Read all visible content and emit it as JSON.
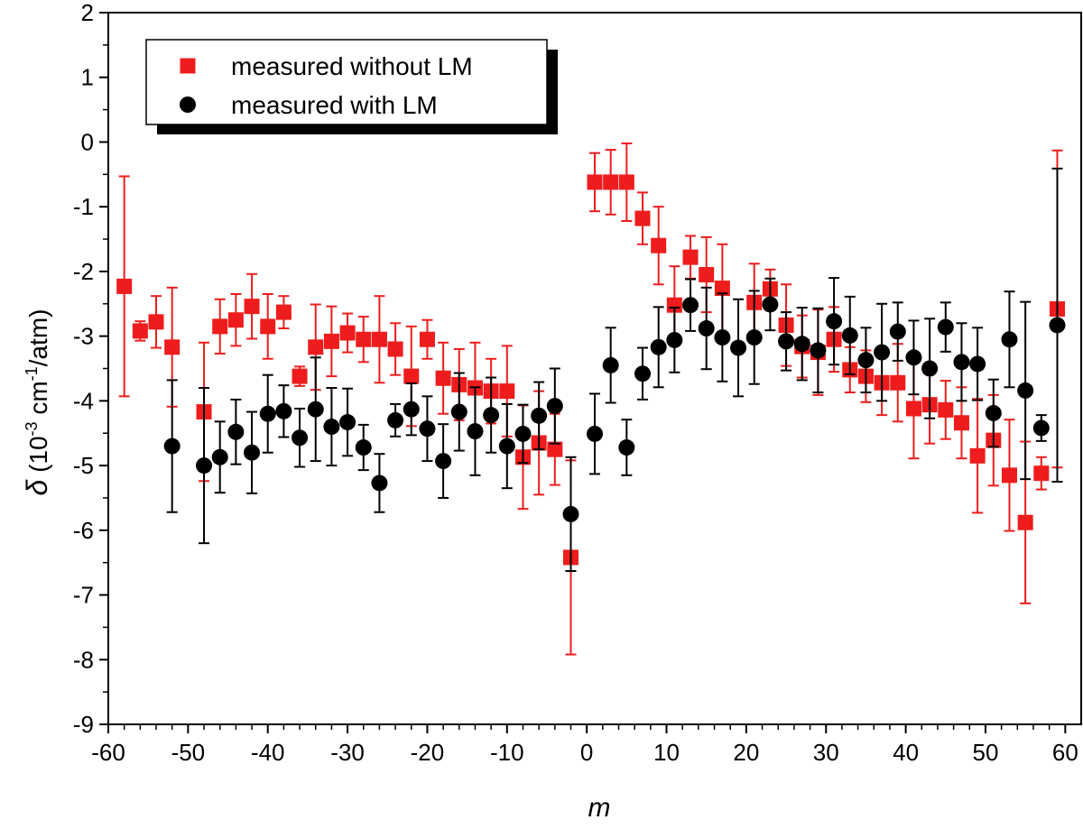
{
  "chart_data": {
    "type": "scatter",
    "xlabel": "m",
    "ylabel": "δ (10⁻³ cm⁻¹/atm)",
    "ylabel_parts": {
      "symbol": "δ",
      "prefix": " (10",
      "exp1": "-3",
      "mid": " cm",
      "exp2": "-1",
      "suffix": "/atm)"
    },
    "xlim": [
      -60,
      62
    ],
    "ylim": [
      -9,
      2
    ],
    "x_ticks": [
      -60,
      -50,
      -40,
      -30,
      -20,
      -10,
      0,
      10,
      20,
      30,
      40,
      50,
      60
    ],
    "y_ticks": [
      2,
      1,
      0,
      -1,
      -2,
      -3,
      -4,
      -5,
      -6,
      -7,
      -8,
      -9
    ],
    "x_tick_labels": [
      "-60",
      "-50",
      "-40",
      "-30",
      "-20",
      "-10",
      "0",
      "10",
      "20",
      "30",
      "40",
      "50",
      "60"
    ],
    "y_tick_labels": [
      "2",
      "1",
      "0",
      "-1",
      "-2",
      "-3",
      "-4",
      "-5",
      "-6",
      "-7",
      "-8",
      "-9"
    ],
    "grid": false,
    "legend_position": "top-left",
    "series": [
      {
        "name": "measured without LM",
        "color": "#ee1c1c",
        "marker": "square",
        "points": [
          {
            "x": -58,
            "y": -2.23,
            "err": 1.7
          },
          {
            "x": -56,
            "y": -2.92,
            "err": 0.15
          },
          {
            "x": -54,
            "y": -2.78,
            "err": 0.4
          },
          {
            "x": -52,
            "y": -3.17,
            "err": 0.92
          },
          {
            "x": -48,
            "y": -4.17,
            "err": 1.07
          },
          {
            "x": -46,
            "y": -2.85,
            "err": 0.42
          },
          {
            "x": -44,
            "y": -2.75,
            "err": 0.4
          },
          {
            "x": -42,
            "y": -2.54,
            "err": 0.5
          },
          {
            "x": -40,
            "y": -2.85,
            "err": 0.5
          },
          {
            "x": -38,
            "y": -2.63,
            "err": 0.25
          },
          {
            "x": -36,
            "y": -3.62,
            "err": 0.15
          },
          {
            "x": -34,
            "y": -3.17,
            "err": 0.66
          },
          {
            "x": -32,
            "y": -3.08,
            "err": 0.54
          },
          {
            "x": -30,
            "y": -2.95,
            "err": 0.3
          },
          {
            "x": -28,
            "y": -3.05,
            "err": 0.35
          },
          {
            "x": -26,
            "y": -3.05,
            "err": 0.67
          },
          {
            "x": -24,
            "y": -3.2,
            "err": 0.4
          },
          {
            "x": -22,
            "y": -3.62,
            "err": 0.77
          },
          {
            "x": -20,
            "y": -3.05,
            "err": 0.3
          },
          {
            "x": -18,
            "y": -3.65,
            "err": 0.55
          },
          {
            "x": -16,
            "y": -3.75,
            "err": 0.55
          },
          {
            "x": -14,
            "y": -3.8,
            "err": 0.7
          },
          {
            "x": -12,
            "y": -3.85,
            "err": 0.5
          },
          {
            "x": -10,
            "y": -3.85,
            "err": 0.7
          },
          {
            "x": -8,
            "y": -4.87,
            "err": 0.8
          },
          {
            "x": -6,
            "y": -4.65,
            "err": 0.8
          },
          {
            "x": -4,
            "y": -4.75,
            "err": 0.55
          },
          {
            "x": -2,
            "y": -6.42,
            "err": 1.5
          },
          {
            "x": 1,
            "y": -0.62,
            "err": 0.45
          },
          {
            "x": 3,
            "y": -0.62,
            "err": 0.5
          },
          {
            "x": 5,
            "y": -0.62,
            "err": 0.6
          },
          {
            "x": 7,
            "y": -1.18,
            "err": 0.4
          },
          {
            "x": 9,
            "y": -1.6,
            "err": 0.6
          },
          {
            "x": 11,
            "y": -2.52,
            "err": 0.6
          },
          {
            "x": 13,
            "y": -1.78,
            "err": 0.33
          },
          {
            "x": 15,
            "y": -2.05,
            "err": 0.58
          },
          {
            "x": 17,
            "y": -2.26,
            "err": 0.68
          },
          {
            "x": 21,
            "y": -2.48,
            "err": 0.6
          },
          {
            "x": 23,
            "y": -2.27,
            "err": 0.3
          },
          {
            "x": 25,
            "y": -2.83,
            "err": 0.63
          },
          {
            "x": 27,
            "y": -3.16,
            "err": 0.48
          },
          {
            "x": 29,
            "y": -3.25,
            "err": 0.66
          },
          {
            "x": 31,
            "y": -3.05,
            "err": 0.5
          },
          {
            "x": 33,
            "y": -3.52,
            "err": 0.35
          },
          {
            "x": 35,
            "y": -3.62,
            "err": 0.4
          },
          {
            "x": 37,
            "y": -3.72,
            "err": 0.5
          },
          {
            "x": 39,
            "y": -3.72,
            "err": 0.6
          },
          {
            "x": 41,
            "y": -4.12,
            "err": 0.77
          },
          {
            "x": 43,
            "y": -4.06,
            "err": 0.6
          },
          {
            "x": 45,
            "y": -4.14,
            "err": 0.45
          },
          {
            "x": 47,
            "y": -4.34,
            "err": 0.55
          },
          {
            "x": 49,
            "y": -4.85,
            "err": 0.88
          },
          {
            "x": 51,
            "y": -4.61,
            "err": 0.7
          },
          {
            "x": 53,
            "y": -5.15,
            "err": 0.86
          },
          {
            "x": 55,
            "y": -5.88,
            "err": 1.25
          },
          {
            "x": 57,
            "y": -5.12,
            "err": 0.25
          },
          {
            "x": 59,
            "y": -2.58,
            "err": 2.45
          }
        ]
      },
      {
        "name": "measured with LM",
        "color": "#000000",
        "marker": "circle",
        "points": [
          {
            "x": -52,
            "y": -4.7,
            "err": 1.02
          },
          {
            "x": -48,
            "y": -5.0,
            "err": 1.2
          },
          {
            "x": -46,
            "y": -4.87,
            "err": 0.55
          },
          {
            "x": -44,
            "y": -4.48,
            "err": 0.5
          },
          {
            "x": -42,
            "y": -4.8,
            "err": 0.63
          },
          {
            "x": -40,
            "y": -4.2,
            "err": 0.6
          },
          {
            "x": -38,
            "y": -4.16,
            "err": 0.4
          },
          {
            "x": -36,
            "y": -4.57,
            "err": 0.45
          },
          {
            "x": -34,
            "y": -4.13,
            "err": 0.8
          },
          {
            "x": -32,
            "y": -4.4,
            "err": 0.6
          },
          {
            "x": -30,
            "y": -4.33,
            "err": 0.52
          },
          {
            "x": -28,
            "y": -4.72,
            "err": 0.35
          },
          {
            "x": -26,
            "y": -5.27,
            "err": 0.45
          },
          {
            "x": -24,
            "y": -4.3,
            "err": 0.25
          },
          {
            "x": -22,
            "y": -4.13,
            "err": 0.4
          },
          {
            "x": -20,
            "y": -4.43,
            "err": 0.5
          },
          {
            "x": -18,
            "y": -4.93,
            "err": 0.57
          },
          {
            "x": -16,
            "y": -4.17,
            "err": 0.6
          },
          {
            "x": -14,
            "y": -4.47,
            "err": 0.68
          },
          {
            "x": -12,
            "y": -4.22,
            "err": 0.58
          },
          {
            "x": -10,
            "y": -4.7,
            "err": 0.65
          },
          {
            "x": -8,
            "y": -4.51,
            "err": 0.45
          },
          {
            "x": -6,
            "y": -4.23,
            "err": 0.52
          },
          {
            "x": -4,
            "y": -4.08,
            "err": 0.58
          },
          {
            "x": -2,
            "y": -5.75,
            "err": 0.88
          },
          {
            "x": 1,
            "y": -4.51,
            "err": 0.62
          },
          {
            "x": 3,
            "y": -3.45,
            "err": 0.58
          },
          {
            "x": 5,
            "y": -4.72,
            "err": 0.43
          },
          {
            "x": 7,
            "y": -3.58,
            "err": 0.4
          },
          {
            "x": 9,
            "y": -3.17,
            "err": 0.62
          },
          {
            "x": 11,
            "y": -3.06,
            "err": 0.5
          },
          {
            "x": 13,
            "y": -2.52,
            "err": 0.4
          },
          {
            "x": 15,
            "y": -2.88,
            "err": 0.63
          },
          {
            "x": 17,
            "y": -3.02,
            "err": 0.68
          },
          {
            "x": 19,
            "y": -3.18,
            "err": 0.75
          },
          {
            "x": 21,
            "y": -3.02,
            "err": 0.72
          },
          {
            "x": 23,
            "y": -2.51,
            "err": 0.4
          },
          {
            "x": 25,
            "y": -3.08,
            "err": 0.45
          },
          {
            "x": 27,
            "y": -3.12,
            "err": 0.56
          },
          {
            "x": 29,
            "y": -3.22,
            "err": 0.65
          },
          {
            "x": 31,
            "y": -2.77,
            "err": 0.67
          },
          {
            "x": 33,
            "y": -2.99,
            "err": 0.6
          },
          {
            "x": 35,
            "y": -3.37,
            "err": 0.5
          },
          {
            "x": 37,
            "y": -3.25,
            "err": 0.75
          },
          {
            "x": 39,
            "y": -2.93,
            "err": 0.45
          },
          {
            "x": 41,
            "y": -3.33,
            "err": 0.57
          },
          {
            "x": 43,
            "y": -3.5,
            "err": 0.77
          },
          {
            "x": 45,
            "y": -2.86,
            "err": 0.38
          },
          {
            "x": 47,
            "y": -3.4,
            "err": 0.6
          },
          {
            "x": 49,
            "y": -3.43,
            "err": 0.56
          },
          {
            "x": 51,
            "y": -4.19,
            "err": 0.52
          },
          {
            "x": 53,
            "y": -3.05,
            "err": 0.74
          },
          {
            "x": 55,
            "y": -3.84,
            "err": 1.37
          },
          {
            "x": 57,
            "y": -4.42,
            "err": 0.2
          },
          {
            "x": 59,
            "y": -2.83,
            "err": 2.42
          }
        ]
      }
    ]
  }
}
